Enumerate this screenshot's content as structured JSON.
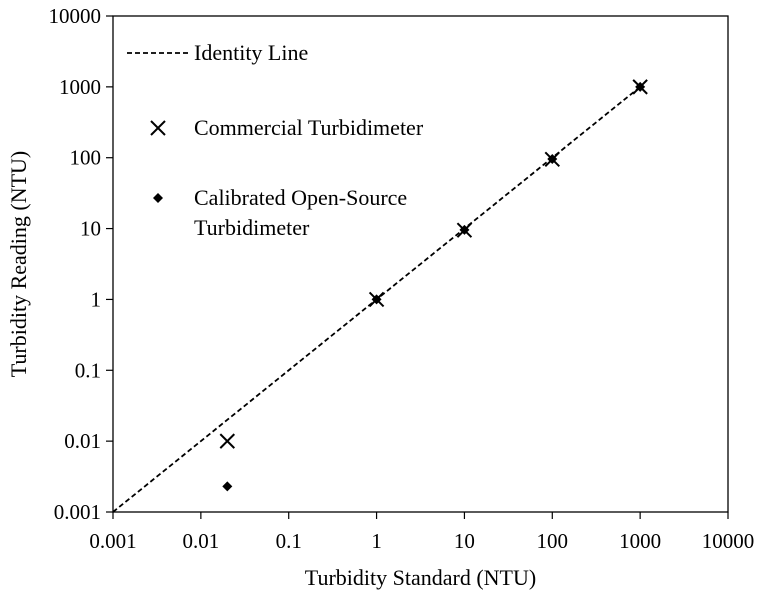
{
  "chart_data": {
    "type": "scatter",
    "x_scale": "log",
    "y_scale": "log",
    "xlabel": "Turbidity Standard (NTU)",
    "ylabel": "Turbidity Reading (NTU)",
    "xlim": [
      0.001,
      10000
    ],
    "ylim": [
      0.001,
      10000
    ],
    "x_ticks": [
      "0.001",
      "0.01",
      "0.1",
      "1",
      "10",
      "100",
      "1000",
      "10000"
    ],
    "y_ticks": [
      "0.001",
      "0.01",
      "0.1",
      "1",
      "10",
      "100",
      "1000",
      "10000"
    ],
    "grid": false,
    "legend_position": "top-left",
    "legend": [
      {
        "label": "Identity Line",
        "marker": "dashed-line"
      },
      {
        "label": "Commercial Turbidimeter",
        "marker": "x"
      },
      {
        "label_lines": [
          "Calibrated Open-Source",
          "Turbidimeter"
        ],
        "marker": "diamond"
      }
    ],
    "identity_line": {
      "x": [
        0.001,
        1000
      ],
      "y": [
        0.001,
        1000
      ],
      "style": "dashed"
    },
    "series": [
      {
        "name": "Commercial Turbidimeter",
        "marker": "x",
        "x": [
          0.02,
          1,
          10,
          100,
          1000
        ],
        "y": [
          0.01,
          1.0,
          9.5,
          95,
          1000
        ]
      },
      {
        "name": "Calibrated Open-Source Turbidimeter",
        "marker": "diamond",
        "x": [
          0.02,
          1,
          10,
          100,
          1000
        ],
        "y": [
          0.0023,
          1.0,
          9.6,
          96,
          1000
        ]
      }
    ],
    "colors": {
      "axis": "#000000",
      "marker": "#000000"
    }
  }
}
